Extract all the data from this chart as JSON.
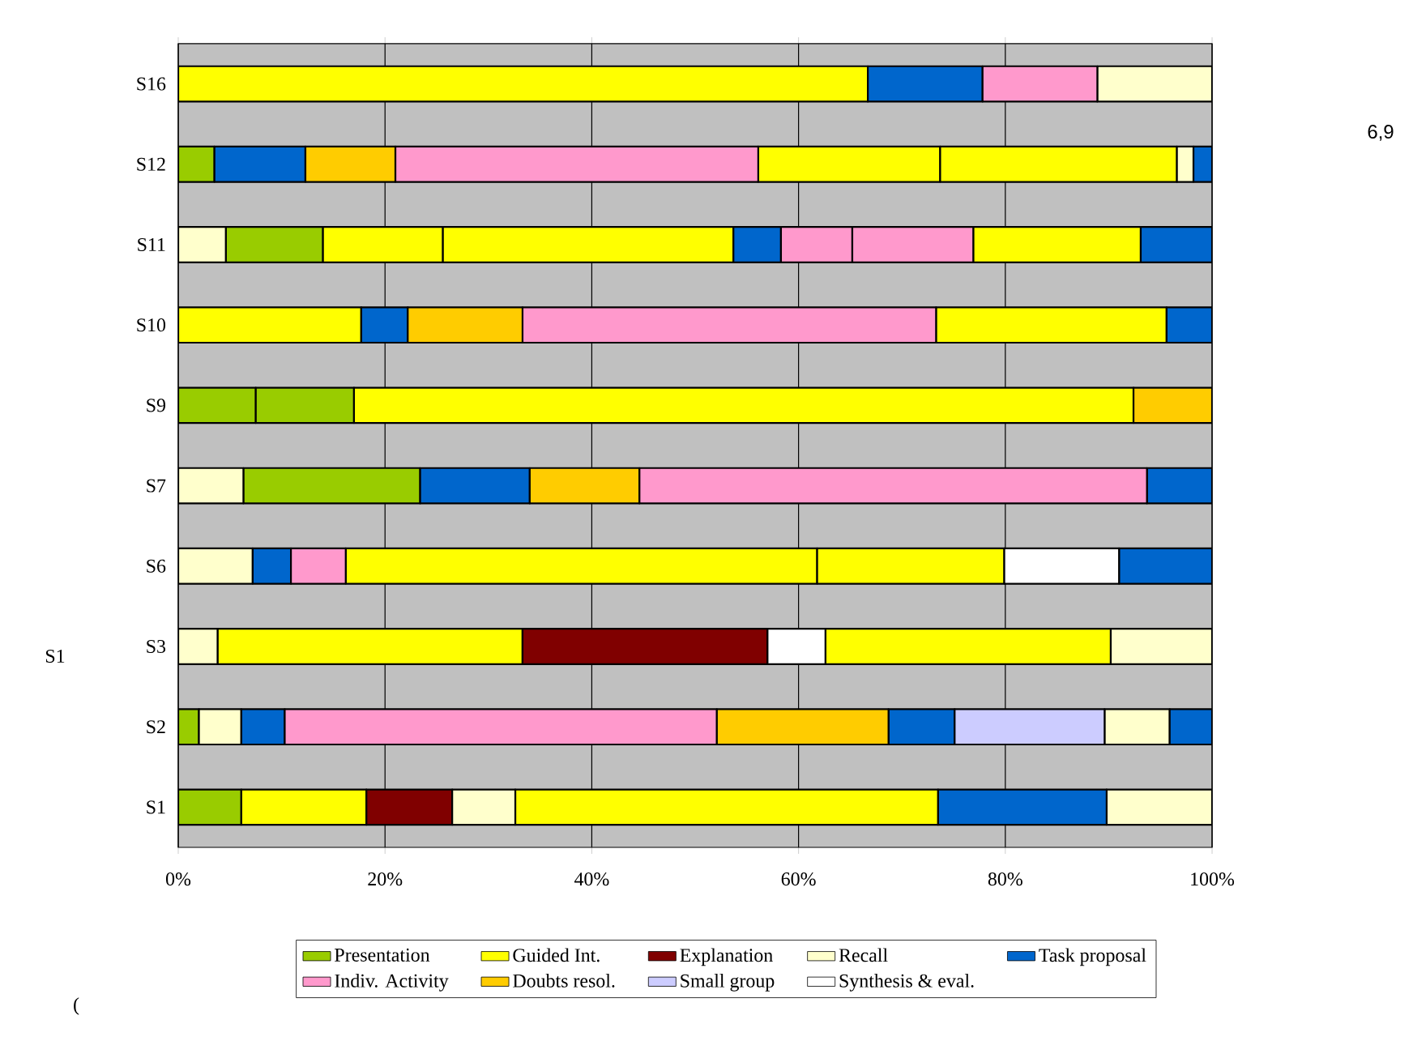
{
  "chart_data": {
    "type": "bar",
    "orientation": "horizontal",
    "categories": [
      "S16",
      "S12",
      "S11",
      "S10",
      "S9",
      "S7",
      "S6",
      "S3",
      "S2",
      "S1"
    ],
    "series": [
      {
        "name": "Presentation",
        "color": "#99cc00",
        "values": [
          null,
          3.5,
          9.4,
          null,
          7.5,
          17.1,
          null,
          null,
          2.0,
          6.1
        ],
        "base": [
          null,
          0,
          4.6,
          null,
          0,
          6.3,
          null,
          null,
          0,
          0
        ]
      },
      {
        "color": "#99cc00",
        "values": [
          null,
          null,
          null,
          null,
          9.5,
          null,
          null,
          null,
          null,
          null
        ],
        "base": [
          null,
          null,
          null,
          null,
          7.5,
          null,
          null,
          null,
          null,
          null
        ]
      },
      {
        "name": "Guided Int.",
        "color": "#ffff00",
        "values": [
          66.7,
          17.6,
          11.6,
          17.7,
          75.4,
          null,
          45.6,
          29.5,
          null,
          12.1
        ],
        "base": [
          0,
          56.1,
          14.0,
          0,
          17.0,
          null,
          16.2,
          3.8,
          null,
          6.1
        ]
      },
      {
        "color": "#ffff00",
        "values": [
          null,
          22.9,
          28.1,
          22.3,
          null,
          null,
          18.1,
          27.6,
          null,
          40.9
        ],
        "base": [
          null,
          73.7,
          25.6,
          73.3,
          null,
          null,
          61.8,
          62.6,
          null,
          32.6
        ]
      },
      {
        "color": "#ffff00",
        "values": [
          null,
          null,
          16.2,
          null,
          null,
          null,
          null,
          null,
          null,
          null
        ],
        "base": [
          null,
          null,
          76.9,
          null,
          null,
          null,
          null,
          null,
          null,
          null
        ]
      },
      {
        "name": "Explanation",
        "color": "#800000",
        "values": [
          null,
          null,
          null,
          null,
          null,
          null,
          null,
          23.7,
          null,
          8.3
        ],
        "base": [
          null,
          null,
          null,
          null,
          null,
          null,
          null,
          33.3,
          null,
          18.2
        ]
      },
      {
        "name": "Recall",
        "color": "#ffffcc",
        "values": [
          11.1,
          1.6,
          4.6,
          null,
          null,
          6.3,
          7.2,
          3.8,
          4.1,
          6.1
        ],
        "base": [
          88.9,
          96.6,
          0,
          null,
          null,
          0,
          0,
          0,
          2.0,
          26.5
        ]
      },
      {
        "color": "#ffffcc",
        "values": [
          null,
          null,
          null,
          null,
          null,
          null,
          null,
          9.8,
          6.3,
          10.2
        ],
        "base": [
          null,
          null,
          null,
          null,
          null,
          null,
          null,
          90.2,
          89.6,
          89.8
        ]
      },
      {
        "name": "Task proposal",
        "color": "#0066cc",
        "values": [
          11.1,
          8.8,
          4.6,
          4.5,
          null,
          10.6,
          3.7,
          null,
          4.2,
          16.3
        ],
        "base": [
          66.7,
          3.5,
          53.7,
          17.7,
          null,
          23.4,
          7.2,
          null,
          6.1,
          73.5
        ]
      },
      {
        "color": "#0066cc",
        "values": [
          null,
          1.8,
          6.9,
          4.4,
          null,
          6.3,
          9.0,
          null,
          6.4,
          null
        ],
        "base": [
          null,
          98.2,
          93.1,
          95.6,
          null,
          93.7,
          91.0,
          null,
          68.7,
          null
        ]
      },
      {
        "color": "#0066cc",
        "values": [
          null,
          null,
          null,
          null,
          null,
          null,
          null,
          null,
          4.1,
          null
        ],
        "base": [
          null,
          null,
          null,
          null,
          null,
          null,
          null,
          null,
          95.9,
          null
        ]
      },
      {
        "name": "Indiv. Activity",
        "color": "#ff99cc",
        "values": [
          11.1,
          35.1,
          6.9,
          40.0,
          null,
          49.1,
          5.3,
          null,
          41.8,
          null
        ],
        "base": [
          77.8,
          21.0,
          58.3,
          33.3,
          null,
          44.6,
          10.9,
          null,
          10.3,
          null
        ]
      },
      {
        "color": "#ff99cc",
        "values": [
          null,
          null,
          11.7,
          null,
          null,
          null,
          null,
          null,
          null,
          null
        ],
        "base": [
          null,
          null,
          65.2,
          null,
          null,
          null,
          null,
          null,
          null,
          null
        ]
      },
      {
        "name": "Doubts resol.",
        "color": "#ffcc00",
        "values": [
          null,
          8.7,
          null,
          11.1,
          7.6,
          10.6,
          null,
          null,
          16.6,
          null
        ],
        "base": [
          null,
          12.3,
          null,
          22.2,
          92.4,
          34.0,
          null,
          null,
          52.1,
          null
        ]
      },
      {
        "name": "Small group",
        "color": "#ccccff",
        "values": [
          null,
          null,
          null,
          null,
          null,
          null,
          null,
          null,
          14.5,
          null
        ],
        "base": [
          null,
          null,
          null,
          null,
          null,
          null,
          null,
          null,
          75.1,
          null
        ]
      },
      {
        "name": "Synthesis & eval.",
        "color": "#ffffff",
        "values": [
          null,
          null,
          null,
          null,
          null,
          null,
          11.1,
          5.6,
          null,
          null
        ],
        "base": [
          null,
          null,
          null,
          null,
          null,
          null,
          79.9,
          57.0,
          null,
          null
        ]
      }
    ],
    "xlim": [
      0,
      100
    ],
    "xticks": [
      {
        "value": 0,
        "label": "0%"
      },
      {
        "value": 20,
        "label": "20%"
      },
      {
        "value": 40,
        "label": "40%"
      },
      {
        "value": 60,
        "label": "60%"
      },
      {
        "value": 80,
        "label": "80%"
      },
      {
        "value": 100,
        "label": "100%"
      }
    ],
    "grid": "x",
    "legend": "bottom",
    "annotations": [
      "S1",
      "6,9",
      "("
    ]
  }
}
